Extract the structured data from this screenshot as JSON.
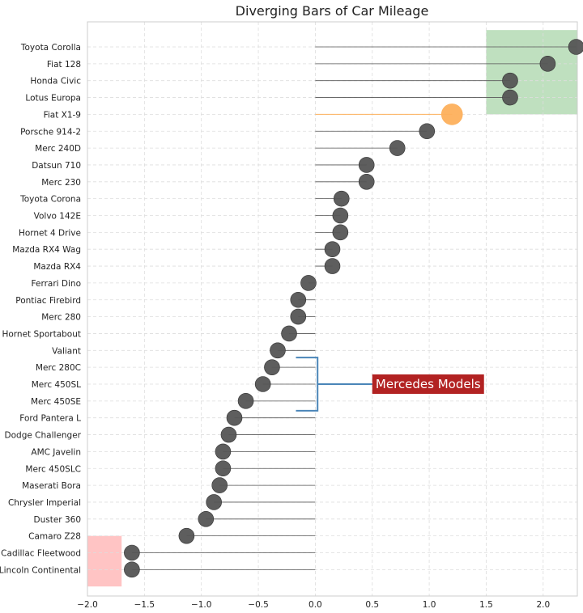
{
  "chart_data": {
    "type": "dot",
    "title": "Diverging Bars of Car Mileage",
    "xlabel": "",
    "ylabel": "",
    "xlim": [
      -2.0,
      2.3
    ],
    "xticks": [
      -2.0,
      -1.5,
      -1.0,
      -0.5,
      0.0,
      0.5,
      1.0,
      1.5,
      2.0
    ],
    "xtick_labels": [
      "−2.0",
      "−1.5",
      "−1.0",
      "−0.5",
      "0.0",
      "0.5",
      "1.0",
      "1.5",
      "2.0"
    ],
    "grid": true,
    "categories": [
      "Toyota Corolla",
      "Fiat 128",
      "Honda Civic",
      "Lotus Europa",
      "Fiat X1-9",
      "Porsche 914-2",
      "Merc 240D",
      "Datsun 710",
      "Merc 230",
      "Toyota Corona",
      "Volvo 142E",
      "Hornet 4 Drive",
      "Mazda RX4 Wag",
      "Mazda RX4",
      "Ferrari Dino",
      "Pontiac Firebird",
      "Merc 280",
      "Hornet Sportabout",
      "Valiant",
      "Merc 280C",
      "Merc 450SL",
      "Merc 450SE",
      "Ford Pantera L",
      "Dodge Challenger",
      "AMC Javelin",
      "Merc 450SLC",
      "Maserati Bora",
      "Chrysler Imperial",
      "Duster 360",
      "Camaro Z28",
      "Cadillac Fleetwood",
      "Lincoln Continental"
    ],
    "values": [
      2.29,
      2.04,
      1.71,
      1.71,
      1.2,
      0.98,
      0.72,
      0.45,
      0.45,
      0.23,
      0.22,
      0.22,
      0.15,
      0.15,
      -0.06,
      -0.15,
      -0.15,
      -0.23,
      -0.33,
      -0.38,
      -0.46,
      -0.61,
      -0.71,
      -0.76,
      -0.81,
      -0.81,
      -0.84,
      -0.89,
      -0.96,
      -1.13,
      -1.61,
      -1.61
    ],
    "highlight": {
      "category": "Fiat X1-9",
      "color": "#fdb05c"
    },
    "point_color": "#555555",
    "shaded_regions": [
      {
        "x": [
          1.5,
          2.3
        ],
        "categories": [
          "Toyota Corolla",
          "Lotus Europa"
        ],
        "color": "#bfe0bf"
      },
      {
        "x": [
          -2.0,
          -1.7
        ],
        "categories": [
          "Cadillac Fleetwood",
          "Lincoln Continental"
        ],
        "color": "#ffc4c4"
      }
    ],
    "annotation": {
      "text": "Mercedes Models",
      "bracket_categories": [
        "Merc 280C",
        "Merc 450SE"
      ],
      "bracket_color": "#4a85b8",
      "box_color": "#b22222"
    }
  }
}
